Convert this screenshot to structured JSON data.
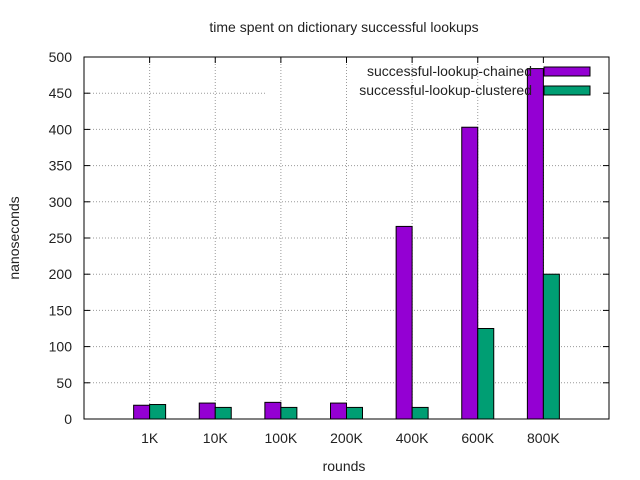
{
  "chart_data": {
    "type": "bar",
    "title": "time spent on dictionary successful lookups",
    "xlabel": "rounds",
    "ylabel": "nanoseconds",
    "categories": [
      "1K",
      "10K",
      "100K",
      "200K",
      "400K",
      "600K",
      "800K"
    ],
    "series": [
      {
        "name": "successful-lookup-chained",
        "color": "#9400d3",
        "values": [
          19,
          22,
          23,
          22,
          266,
          403,
          484
        ]
      },
      {
        "name": "successful-lookup-clustered",
        "color": "#009e73",
        "values": [
          20,
          16,
          16,
          16,
          16,
          125,
          200
        ]
      }
    ],
    "ylim": [
      0,
      500
    ],
    "yticks": [
      0,
      50,
      100,
      150,
      200,
      250,
      300,
      350,
      400,
      450,
      500
    ],
    "grid": true,
    "legend_position": "top-right"
  }
}
